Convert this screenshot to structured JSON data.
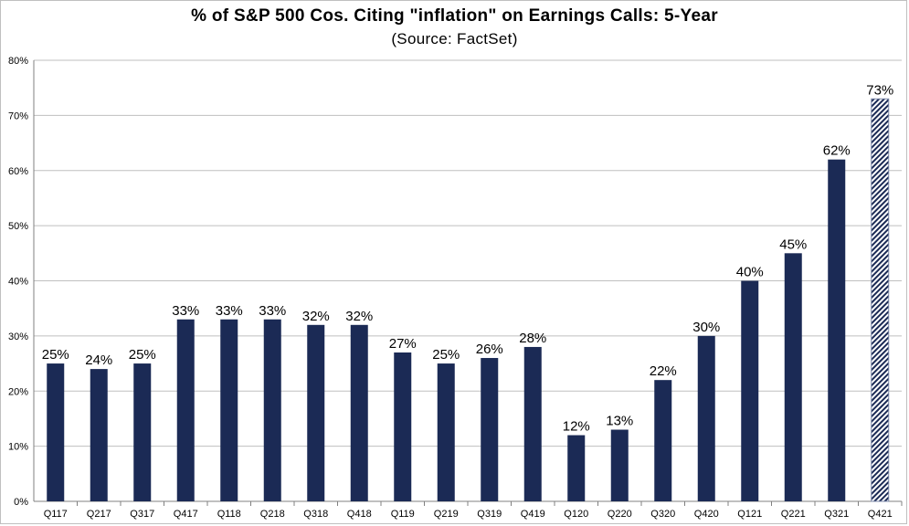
{
  "chart_data": {
    "type": "bar",
    "title": "% of S&P 500 Cos. Citing \"inflation\" on Earnings Calls: 5-Year",
    "subtitle": "(Source: FactSet)",
    "categories": [
      "Q117",
      "Q217",
      "Q317",
      "Q417",
      "Q118",
      "Q218",
      "Q318",
      "Q418",
      "Q119",
      "Q219",
      "Q319",
      "Q419",
      "Q120",
      "Q220",
      "Q320",
      "Q420",
      "Q121",
      "Q221",
      "Q321",
      "Q421"
    ],
    "values": [
      25,
      24,
      25,
      33,
      33,
      33,
      32,
      32,
      27,
      25,
      26,
      28,
      12,
      13,
      22,
      30,
      40,
      45,
      62,
      73
    ],
    "data_labels": [
      "25%",
      "24%",
      "25%",
      "33%",
      "33%",
      "33%",
      "32%",
      "32%",
      "27%",
      "25%",
      "26%",
      "28%",
      "12%",
      "13%",
      "22%",
      "30%",
      "40%",
      "45%",
      "62%",
      "73%"
    ],
    "ylim": [
      0,
      80
    ],
    "yticks": [
      "0%",
      "10%",
      "20%",
      "30%",
      "40%",
      "50%",
      "60%",
      "70%",
      "80%"
    ],
    "grid": true,
    "colors": {
      "bar": "#1b2a55",
      "projected_bar": "#7b87a8"
    },
    "projected_index": 19
  }
}
